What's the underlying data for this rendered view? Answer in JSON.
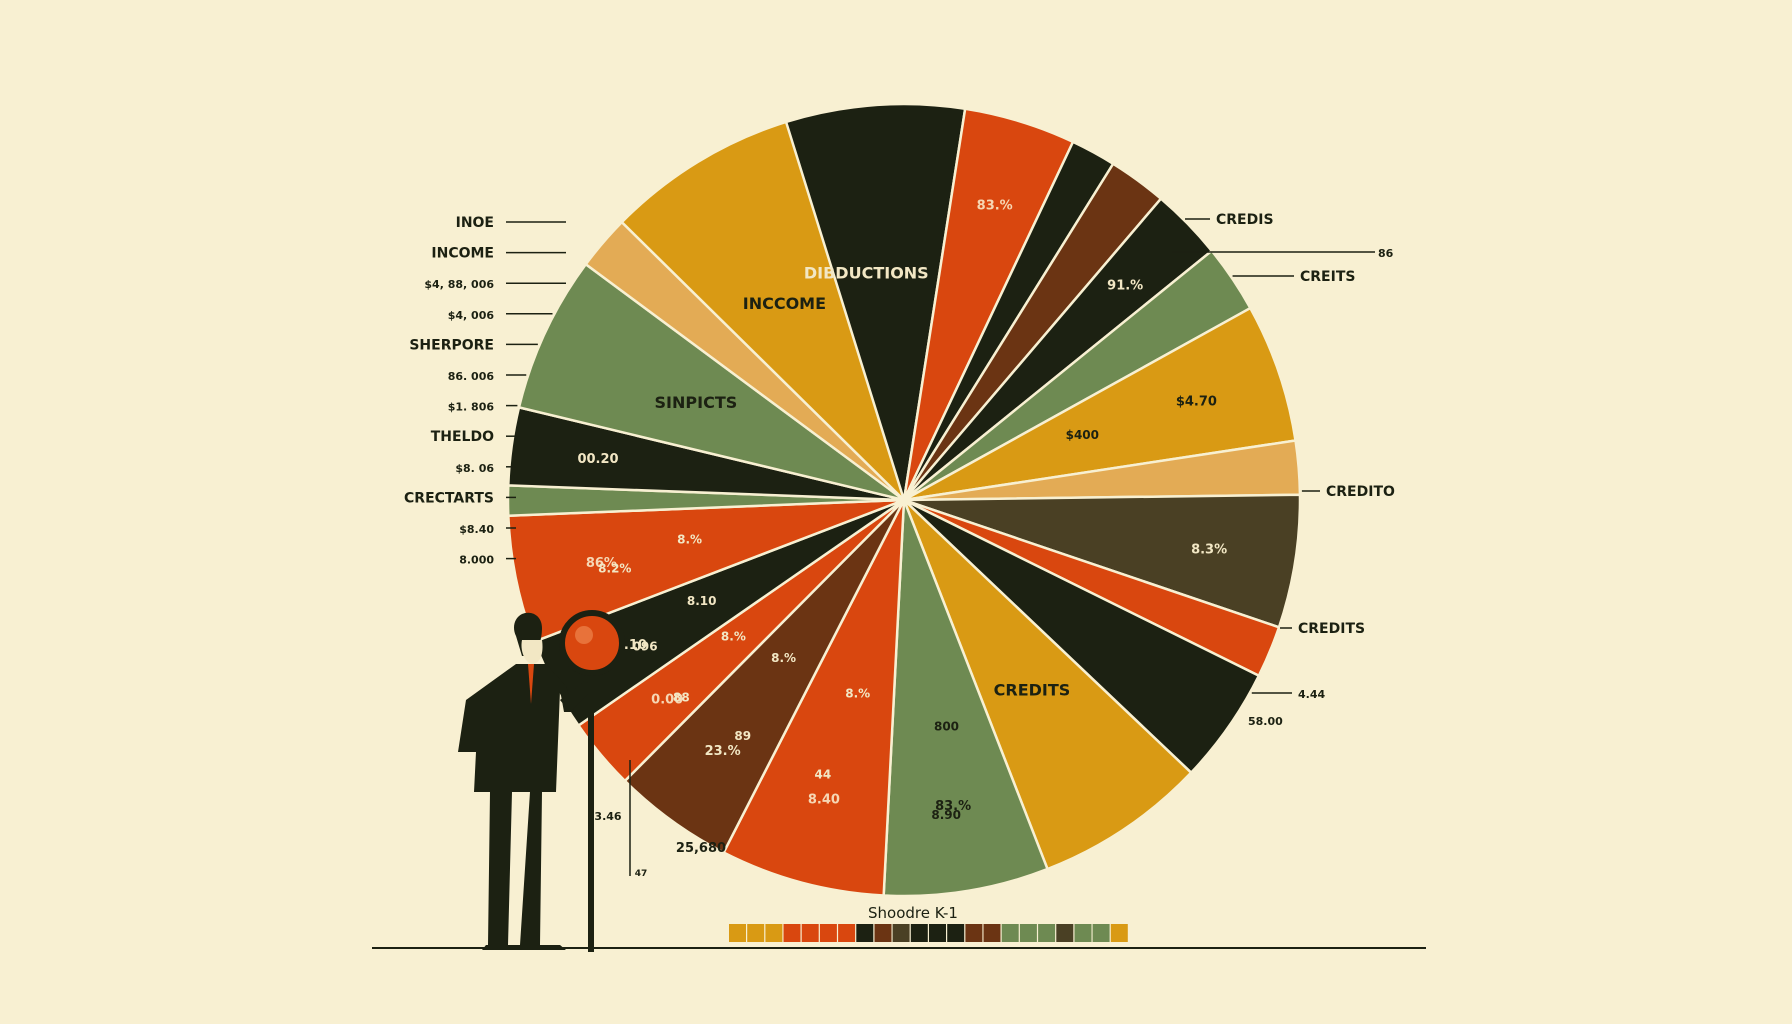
{
  "chart_data": {
    "type": "pie",
    "title": "Shoodre K-1",
    "colors": {
      "black": "#1c2112",
      "orange": "#d9470f",
      "green": "#6e8a52",
      "gold": "#d99a14",
      "tan": "#e3ab55",
      "brown": "#6b3413",
      "olive": "#4a4024",
      "background": "#f8f0d2"
    },
    "slices": [
      {
        "name": "DIBDUCTIONS",
        "color": "black",
        "share": 0.1019,
        "slice_label": "DIBDUCTIONS"
      },
      {
        "name": "orange-top",
        "color": "orange",
        "share": 0.0455,
        "slice_label": "83.%"
      },
      {
        "name": "black-thin",
        "color": "black",
        "share": 0.0184,
        "slice_label": ""
      },
      {
        "name": "brown-top",
        "color": "brown",
        "share": 0.0238,
        "slice_label": ""
      },
      {
        "name": "black-top",
        "color": "black",
        "share": 0.0293,
        "slice_label": "91.%"
      },
      {
        "name": "green-top",
        "color": "green",
        "share": 0.0278,
        "slice_label": ""
      },
      {
        "name": "gold-top",
        "color": "gold",
        "share": 0.0565,
        "slice_label": "$4.70"
      },
      {
        "name": "tan-right",
        "color": "tan",
        "share": 0.0219,
        "slice_label": ""
      },
      {
        "name": "olive-right",
        "color": "olive",
        "share": 0.0542,
        "slice_label": "8.3%"
      },
      {
        "name": "orange-right",
        "color": "orange",
        "share": 0.0211,
        "slice_label": ""
      },
      {
        "name": "black-right",
        "color": "black",
        "share": 0.0477,
        "slice_label": ""
      },
      {
        "name": "CREDITS",
        "color": "gold",
        "share": 0.0701,
        "slice_label": "CREDITS"
      },
      {
        "name": "green-right",
        "color": "green",
        "share": 0.0672,
        "slice_label": "83.%"
      },
      {
        "name": "orange-lower-right",
        "color": "orange",
        "share": 0.0671,
        "slice_label": "8.40"
      },
      {
        "name": "brown-bottom",
        "color": "brown",
        "share": 0.0492,
        "slice_label": "23.%"
      },
      {
        "name": "orange-bottom",
        "color": "orange",
        "share": 0.0291,
        "slice_label": "0.00"
      },
      {
        "name": "black-bottom",
        "color": "black",
        "share": 0.0382,
        "slice_label": "$.10"
      },
      {
        "name": "orange-lower-left",
        "color": "orange",
        "share": 0.0519,
        "slice_label": "86%"
      },
      {
        "name": "green-sliver",
        "color": "green",
        "share": 0.0122,
        "slice_label": ""
      },
      {
        "name": "black-lower-left",
        "color": "black",
        "share": 0.0317,
        "slice_label": "00.20"
      },
      {
        "name": "SINPICTS",
        "color": "green",
        "share": 0.0639,
        "slice_label": "SINPICTS"
      },
      {
        "name": "tan-left",
        "color": "tan",
        "share": 0.0223,
        "slice_label": ""
      },
      {
        "name": "INCCOME",
        "color": "gold",
        "share": 0.0781,
        "slice_label": "INCCOME"
      }
    ],
    "inner_labels": [
      {
        "text": "$400"
      },
      {
        "text": "8.%"
      },
      {
        "text": "89"
      },
      {
        "text": "44"
      },
      {
        "text": "8.%"
      },
      {
        "text": "8.90"
      },
      {
        "text": "800"
      },
      {
        "text": "8.%"
      },
      {
        "text": "096"
      },
      {
        "text": "8.10"
      },
      {
        "text": "88"
      },
      {
        "text": "8.%"
      },
      {
        "text": "8.2%"
      }
    ],
    "left_callouts": [
      "INOE",
      "INCOME",
      "$4, 88, 006",
      "$4, 006",
      "SHERPORE",
      "86. 006",
      "$1. 806",
      "THELDO",
      "$8. 06",
      "CRECTARTS",
      "$8.40",
      "8.000"
    ],
    "right_callouts": [
      "CREDIS",
      "86",
      "CREITS",
      "CREDITO",
      "CREDITS",
      "4.44",
      "58.00"
    ],
    "bottom_labels": [
      "3.46",
      "47",
      "25,680"
    ],
    "legend_swatches": [
      "gold",
      "gold",
      "gold",
      "orange",
      "orange",
      "orange",
      "orange",
      "black",
      "brown",
      "olive",
      "black",
      "black",
      "black",
      "brown",
      "brown",
      "green",
      "green",
      "green",
      "olive",
      "green",
      "green",
      "gold"
    ]
  }
}
